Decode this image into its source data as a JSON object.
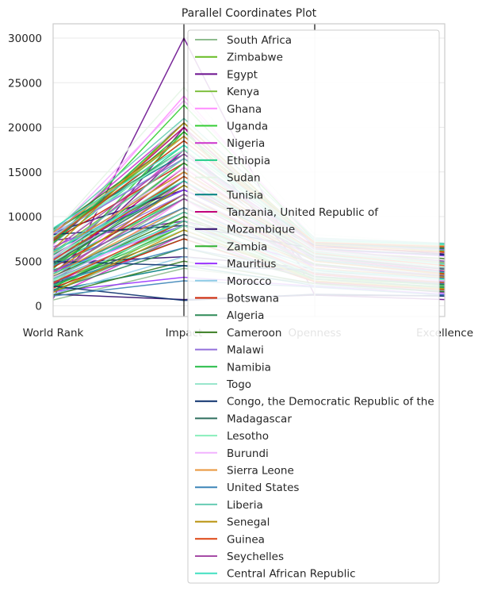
{
  "chart_data": {
    "type": "parallel-coordinates",
    "title": "Parallel Coordinates Plot",
    "axes": [
      "World Rank",
      "Impact",
      "Openness",
      "Excellence"
    ],
    "ylim": [
      -1200,
      31600
    ],
    "yticks": [
      0,
      5000,
      10000,
      15000,
      20000,
      25000,
      30000
    ],
    "grid": true,
    "legend": "upper-right",
    "series": [
      {
        "name": "South Africa",
        "color": "#8fbc8f",
        "lines": [
          [
            650,
            4200,
            2500,
            1100
          ],
          [
            1500,
            8000,
            4000,
            2200
          ],
          [
            3200,
            12000,
            5500,
            3400
          ],
          [
            5000,
            16000,
            6500,
            4800
          ],
          [
            7500,
            20000,
            7200,
            6200
          ]
        ]
      },
      {
        "name": "Zimbabwe",
        "color": "#66bb22",
        "lines": [
          [
            2600,
            8500,
            3000,
            2400
          ],
          [
            4500,
            14000,
            5200,
            3800
          ],
          [
            7600,
            19000,
            6800,
            6200
          ]
        ]
      },
      {
        "name": "Egypt",
        "color": "#6a0f8e",
        "lines": [
          [
            800,
            30000,
            1200,
            700
          ],
          [
            2000,
            20000,
            2600,
            1500
          ],
          [
            3500,
            17500,
            4000,
            2800
          ],
          [
            5200,
            14000,
            5200,
            3800
          ],
          [
            7300,
            9500,
            6000,
            5200
          ]
        ]
      },
      {
        "name": "Kenya",
        "color": "#7fbf3f",
        "lines": [
          [
            1500,
            9000,
            2800,
            1800
          ],
          [
            3500,
            12500,
            4500,
            3200
          ],
          [
            6000,
            16500,
            6200,
            4800
          ]
        ]
      },
      {
        "name": "Ghana",
        "color": "#ff8cff",
        "lines": [
          [
            1900,
            12000,
            3000,
            2100
          ],
          [
            3500,
            15000,
            5000,
            3600
          ],
          [
            6800,
            23500,
            7000,
            5800
          ]
        ]
      },
      {
        "name": "Uganda",
        "color": "#33cc33",
        "lines": [
          [
            1700,
            10000,
            3300,
            2400
          ],
          [
            4100,
            19500,
            5800,
            4200
          ],
          [
            7000,
            22500,
            7300,
            6800
          ]
        ]
      },
      {
        "name": "Nigeria",
        "color": "#cc33cc",
        "lines": [
          [
            1100,
            8000,
            2700,
            1600
          ],
          [
            3000,
            14000,
            4200,
            3000
          ],
          [
            5200,
            17500,
            5600,
            4200
          ],
          [
            8000,
            20500,
            7000,
            6200
          ]
        ]
      },
      {
        "name": "Ethiopia",
        "color": "#22cc88",
        "lines": [
          [
            2300,
            7500,
            3000,
            2100
          ],
          [
            4700,
            12000,
            5200,
            3700
          ],
          [
            7000,
            18000,
            6800,
            6200
          ]
        ]
      },
      {
        "name": "Sudan",
        "color": "#e6f5e6",
        "lines": [
          [
            3000,
            9000,
            4000,
            3000
          ],
          [
            5400,
            21000,
            6200,
            5200
          ],
          [
            8200,
            24500,
            8000,
            7000
          ]
        ]
      },
      {
        "name": "Tunisia",
        "color": "#008080",
        "lines": [
          [
            1700,
            4500,
            2300,
            1600
          ],
          [
            4000,
            9000,
            4500,
            3200
          ],
          [
            6200,
            13000,
            6000,
            4900
          ],
          [
            8500,
            17000,
            7000,
            6400
          ]
        ]
      },
      {
        "name": "Tanzania, United Republic of",
        "color": "#c2007a",
        "lines": [
          [
            2500,
            9500,
            3500,
            2500
          ],
          [
            4500,
            15500,
            5400,
            3900
          ],
          [
            7000,
            20000,
            6600,
            6000
          ]
        ]
      },
      {
        "name": "Mozambique",
        "color": "#2d0a6b",
        "lines": [
          [
            1300,
            700,
            1200,
            1100
          ],
          [
            4800,
            5500,
            4200,
            3100
          ],
          [
            8200,
            13000,
            6800,
            5800
          ]
        ]
      },
      {
        "name": "Zambia",
        "color": "#2ab02a",
        "lines": [
          [
            2100,
            9000,
            3000,
            2000
          ],
          [
            4300,
            14500,
            5500,
            4100
          ],
          [
            7200,
            19500,
            7200,
            6500
          ]
        ]
      },
      {
        "name": "Mauritius",
        "color": "#9933ff",
        "lines": [
          [
            1600,
            3200,
            2200,
            1300
          ],
          [
            3900,
            9000,
            4500,
            3300
          ],
          [
            6600,
            13000,
            6300,
            5600
          ]
        ]
      },
      {
        "name": "Morocco",
        "color": "#8ecbe6",
        "lines": [
          [
            1300,
            5500,
            2300,
            1700
          ],
          [
            3100,
            11000,
            4700,
            3400
          ],
          [
            5500,
            14500,
            6100,
            5000
          ],
          [
            8100,
            16500,
            7400,
            6700
          ]
        ]
      },
      {
        "name": "Botswana",
        "color": "#cc2200",
        "lines": [
          [
            2000,
            7500,
            2700,
            1800
          ],
          [
            4300,
            12500,
            5000,
            3600
          ],
          [
            7300,
            16000,
            6600,
            6000
          ]
        ]
      },
      {
        "name": "Algeria",
        "color": "#2e8b57",
        "lines": [
          [
            1800,
            6500,
            3000,
            2100
          ],
          [
            3600,
            10500,
            4700,
            3300
          ],
          [
            5700,
            14000,
            6000,
            4700
          ],
          [
            8300,
            17500,
            7100,
            6500
          ]
        ]
      },
      {
        "name": "Cameroon",
        "color": "#3a7d22",
        "lines": [
          [
            1200,
            5000,
            2500,
            1600
          ],
          [
            3300,
            10000,
            4600,
            3300
          ],
          [
            6000,
            15000,
            6100,
            5300
          ],
          [
            8600,
            19000,
            7300,
            6900
          ]
        ]
      },
      {
        "name": "Malawi",
        "color": "#9370db",
        "lines": [
          [
            3000,
            9000,
            3600,
            2700
          ],
          [
            5300,
            12500,
            5400,
            4100
          ],
          [
            7900,
            16500,
            6900,
            6300
          ]
        ]
      },
      {
        "name": "Namibia",
        "color": "#22bb44",
        "lines": [
          [
            2100,
            9500,
            3200,
            2300
          ],
          [
            4500,
            16000,
            5800,
            4300
          ],
          [
            7000,
            20500,
            7000,
            6600
          ]
        ]
      },
      {
        "name": "Togo",
        "color": "#99e6cc",
        "lines": [
          [
            2800,
            8500,
            3600,
            2600
          ],
          [
            5000,
            13500,
            5700,
            4300
          ],
          [
            7700,
            17500,
            7200,
            6700
          ]
        ]
      },
      {
        "name": "Congo, the Democratic Republic of the",
        "color": "#0a2f6b",
        "lines": [
          [
            2200,
            600,
            1300,
            1100
          ],
          [
            5000,
            4500,
            4000,
            2800
          ],
          [
            8000,
            9000,
            6400,
            5700
          ]
        ]
      },
      {
        "name": "Madagascar",
        "color": "#2f6f5f",
        "lines": [
          [
            2400,
            8000,
            3300,
            2400
          ],
          [
            4800,
            13500,
            5500,
            4100
          ],
          [
            7400,
            18500,
            7000,
            6400
          ]
        ]
      },
      {
        "name": "Lesotho",
        "color": "#88eebb",
        "lines": [
          [
            2900,
            9000,
            3800,
            2900
          ],
          [
            5400,
            14500,
            6000,
            4600
          ],
          [
            7700,
            17500,
            7300,
            6800
          ]
        ]
      },
      {
        "name": "Burundi",
        "color": "#f2b3ff",
        "lines": [
          [
            3200,
            9500,
            3700,
            2800
          ],
          [
            5500,
            15500,
            6200,
            4700
          ],
          [
            8100,
            23000,
            7500,
            7000
          ]
        ]
      },
      {
        "name": "Sierra Leone",
        "color": "#e8943a",
        "lines": [
          [
            3500,
            11000,
            4200,
            3200
          ],
          [
            6000,
            15000,
            6000,
            4800
          ],
          [
            8200,
            19000,
            7100,
            6700
          ]
        ]
      },
      {
        "name": "United States",
        "color": "#3d85b8",
        "lines": [
          [
            1100,
            2800,
            2100,
            1200
          ],
          [
            2700,
            6500,
            3700,
            2500
          ],
          [
            4500,
            11000,
            5100,
            3800
          ]
        ]
      },
      {
        "name": "Liberia",
        "color": "#66ccb3",
        "lines": [
          [
            3000,
            10500,
            4100,
            3000
          ],
          [
            5800,
            16500,
            6300,
            4900
          ],
          [
            8400,
            21000,
            7600,
            7000
          ]
        ]
      },
      {
        "name": "Senegal",
        "color": "#b8900a",
        "lines": [
          [
            1500,
            8500,
            2800,
            1900
          ],
          [
            3800,
            13500,
            5000,
            3500
          ],
          [
            6300,
            20500,
            6900,
            6100
          ]
        ]
      },
      {
        "name": "Guinea",
        "color": "#dd4411",
        "lines": [
          [
            2600,
            9500,
            3600,
            2600
          ],
          [
            5100,
            14500,
            5900,
            4500
          ],
          [
            7500,
            18500,
            7100,
            6600
          ]
        ]
      },
      {
        "name": "Seychelles",
        "color": "#a64ca6",
        "lines": [
          [
            3800,
            12000,
            4500,
            3400
          ],
          [
            6300,
            17000,
            6400,
            5000
          ]
        ]
      },
      {
        "name": "Central African Republic",
        "color": "#40e0c0",
        "lines": [
          [
            3600,
            9500,
            4000,
            3000
          ],
          [
            6100,
            14000,
            6000,
            4700
          ],
          [
            8700,
            18000,
            7400,
            6900
          ]
        ]
      }
    ]
  }
}
